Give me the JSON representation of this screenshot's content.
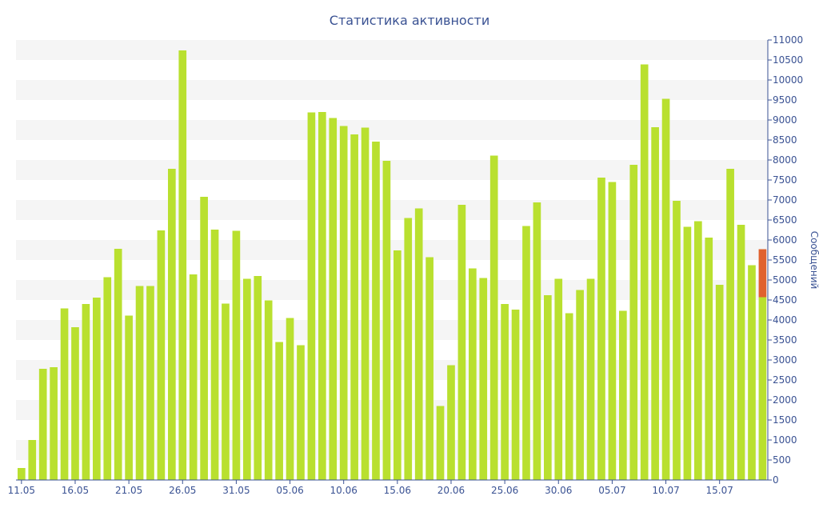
{
  "chart_data": {
    "type": "bar",
    "title": "Статистика активности",
    "xlabel": "",
    "ylabel": "Сообщений",
    "ylim": [
      0,
      11000
    ],
    "y_ticks": [
      0,
      500,
      1000,
      1500,
      2000,
      2500,
      3000,
      3500,
      4000,
      4500,
      5000,
      5500,
      6000,
      6500,
      7000,
      7500,
      8000,
      8500,
      9000,
      9500,
      10000,
      10500,
      11000
    ],
    "y_axis_side": "right",
    "grid": "alternating horizontal bands",
    "x_tick_labels": [
      "11.05",
      "16.05",
      "21.05",
      "26.05",
      "31.05",
      "05.06",
      "10.06",
      "15.06",
      "20.06",
      "25.06",
      "30.06",
      "05.07",
      "10.07",
      "15.07"
    ],
    "x_tick_every": 5,
    "bar_color": "#b9e02f",
    "highlight_color": "#e0622f",
    "band_color": "#f5f5f5",
    "text_color": "#3a5293",
    "values": [
      300,
      1000,
      2780,
      2820,
      4290,
      3820,
      4400,
      4560,
      5070,
      5780,
      4110,
      4850,
      4850,
      6240,
      7780,
      10740,
      5140,
      7080,
      6260,
      4410,
      6230,
      5030,
      5100,
      4490,
      3450,
      4050,
      3370,
      9190,
      9200,
      9050,
      8850,
      8640,
      8810,
      8460,
      7980,
      5740,
      6550,
      6790,
      5570,
      1850,
      2870,
      6880,
      5290,
      5050,
      8110,
      4400,
      4260,
      6350,
      6940,
      4620,
      5030,
      4170,
      4750,
      5030,
      7560,
      7450,
      4230,
      7880,
      10390,
      8820,
      9530,
      6980,
      6330,
      6470,
      6060,
      4880,
      7780,
      6380,
      5370,
      4570
    ],
    "highlight_last": {
      "base": 4570,
      "top": 5770
    }
  }
}
